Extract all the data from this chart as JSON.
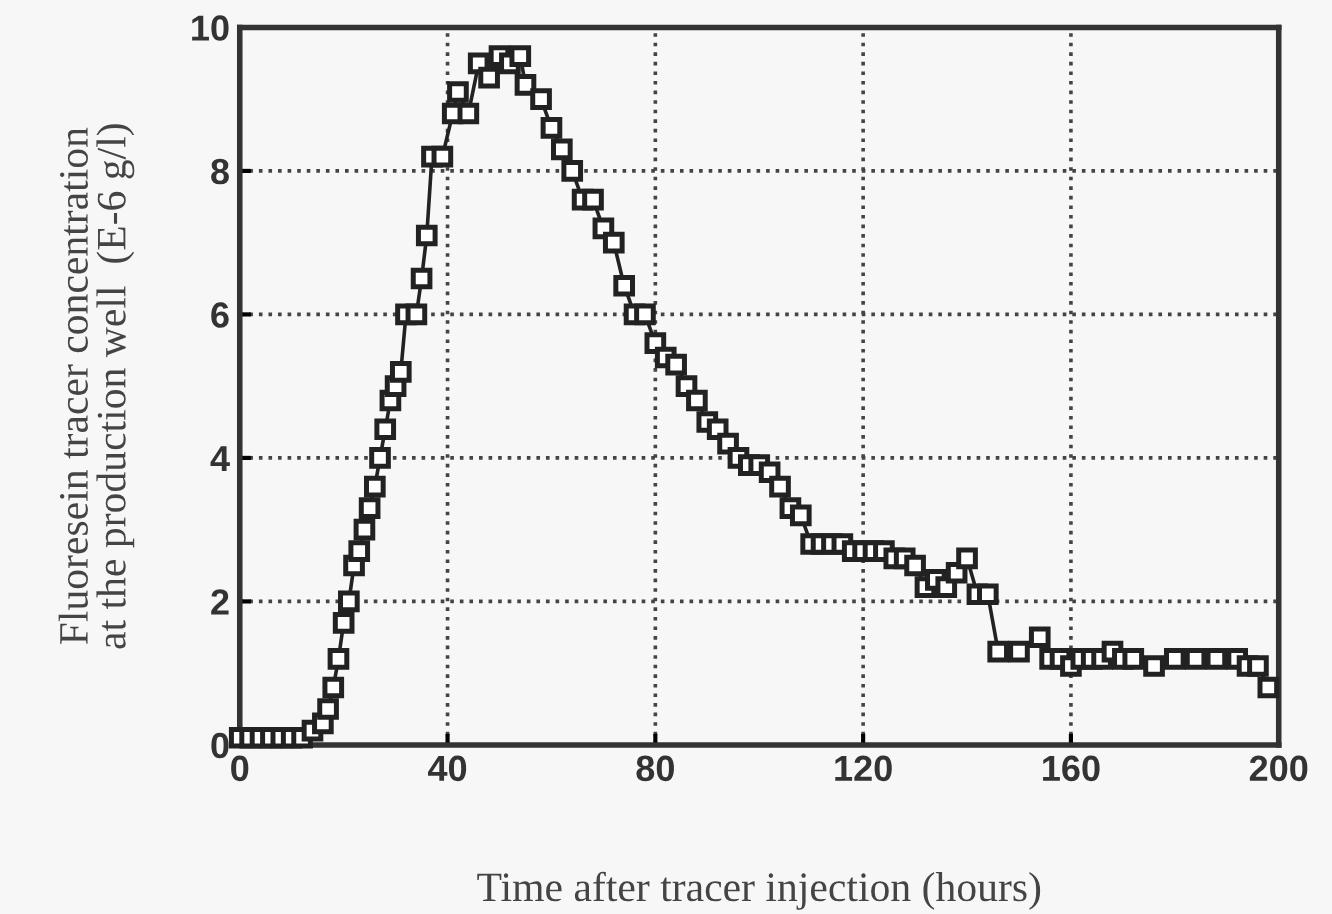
{
  "chart_data": {
    "type": "line",
    "xlabel": "Time after tracer injection (hours)",
    "ylabel": "Fluoresein tracer concentration\nat the production well  (E-6 g/l)",
    "xlim": [
      0,
      200
    ],
    "ylim": [
      0,
      10
    ],
    "xticks": [
      0,
      40,
      80,
      120,
      160,
      200
    ],
    "yticks": [
      0,
      2,
      4,
      6,
      8,
      10
    ],
    "grid": true,
    "marker": "square",
    "line_style": "solid",
    "series": [
      {
        "color": "#222222",
        "x": [
          0,
          2,
          4,
          6,
          8,
          10,
          12,
          14,
          16,
          17,
          18,
          19,
          20,
          21,
          22,
          23,
          24,
          25,
          26,
          27,
          28,
          29,
          30,
          31,
          32,
          34,
          35,
          36,
          37,
          39,
          41,
          42,
          44,
          46,
          48,
          50,
          52,
          54,
          55,
          58,
          60,
          62,
          64,
          66,
          68,
          70,
          72,
          74,
          76,
          78,
          80,
          82,
          84,
          86,
          88,
          90,
          92,
          94,
          96,
          98,
          100,
          102,
          104,
          106,
          108,
          110,
          112,
          114,
          116,
          118,
          120,
          122,
          124,
          126,
          128,
          130,
          132,
          134,
          136,
          138,
          140,
          142,
          144,
          146,
          150,
          154,
          156,
          158,
          160,
          162,
          164,
          166,
          168,
          170,
          172,
          176,
          180,
          184,
          188,
          192,
          194,
          196,
          198
        ],
        "values": [
          0.1,
          0.1,
          0.1,
          0.1,
          0.1,
          0.1,
          0.1,
          0.2,
          0.3,
          0.5,
          0.8,
          1.2,
          1.7,
          2.0,
          2.5,
          2.7,
          3.0,
          3.3,
          3.6,
          4.0,
          4.4,
          4.8,
          5.0,
          5.2,
          6.0,
          6.0,
          6.5,
          7.1,
          8.2,
          8.2,
          8.8,
          9.1,
          8.8,
          9.5,
          9.3,
          9.6,
          9.5,
          9.6,
          9.2,
          9.0,
          8.6,
          8.3,
          8.0,
          7.6,
          7.6,
          7.2,
          7.0,
          6.4,
          6.0,
          6.0,
          5.6,
          5.4,
          5.3,
          5.0,
          4.8,
          4.5,
          4.4,
          4.2,
          4.0,
          3.9,
          3.9,
          3.8,
          3.6,
          3.3,
          3.2,
          2.8,
          2.8,
          2.8,
          2.8,
          2.7,
          2.7,
          2.7,
          2.7,
          2.6,
          2.6,
          2.5,
          2.2,
          2.3,
          2.2,
          2.4,
          2.6,
          2.1,
          2.1,
          1.3,
          1.3,
          1.5,
          1.2,
          1.2,
          1.1,
          1.2,
          1.2,
          1.2,
          1.3,
          1.2,
          1.2,
          1.1,
          1.2,
          1.2,
          1.2,
          1.2,
          1.1,
          1.1,
          0.8
        ]
      }
    ]
  }
}
